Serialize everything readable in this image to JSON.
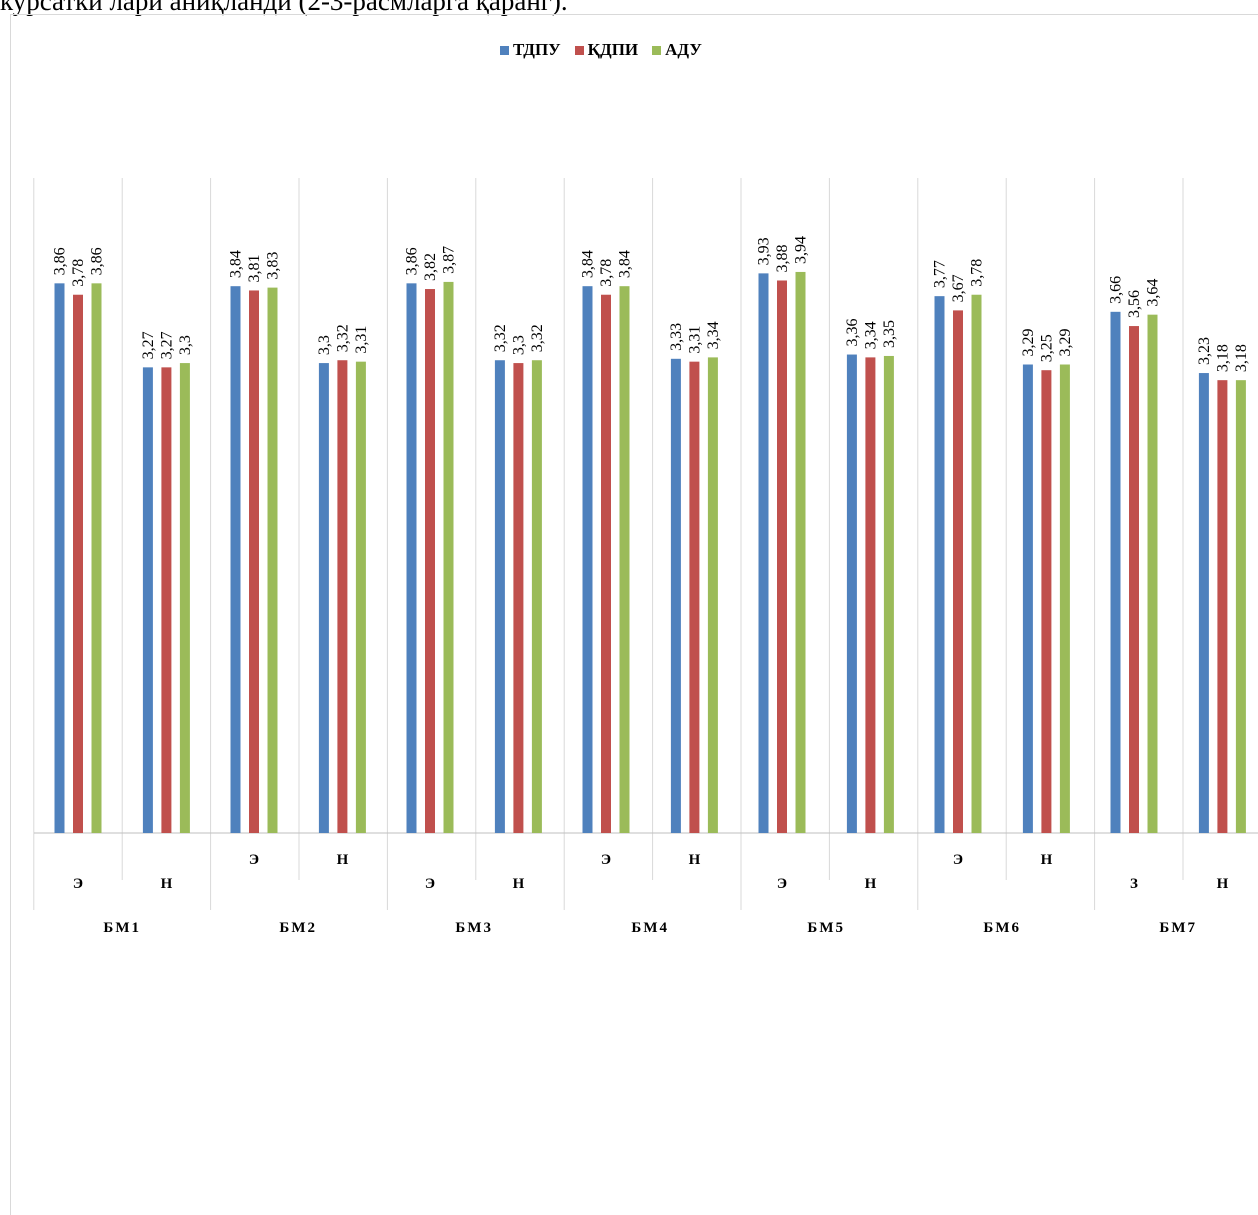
{
  "page": {
    "caption_fragment": "курсатки лари аниқланди (2-3-расмларга қаранг)."
  },
  "chart_data": {
    "type": "bar",
    "title": "",
    "xlabel": "",
    "ylabel": "",
    "ylim": [
      0,
      4.6
    ],
    "grid": false,
    "legend_position": "top-center",
    "groups": [
      {
        "label": "БМ1",
        "subs": [
          "Э",
          "Н"
        ]
      },
      {
        "label": "БМ2",
        "subs": [
          "Э",
          "Н"
        ]
      },
      {
        "label": "БМ3",
        "subs": [
          "Э",
          "Н"
        ]
      },
      {
        "label": "БМ4",
        "subs": [
          "Э",
          "Н"
        ]
      },
      {
        "label": "БМ5",
        "subs": [
          "Э",
          "Н"
        ]
      },
      {
        "label": "БМ6",
        "subs": [
          "Э",
          "Н"
        ]
      },
      {
        "label": "БМ7",
        "subs": [
          "З",
          "Н"
        ]
      }
    ],
    "series": [
      {
        "name": "ТДПУ",
        "color": "#4f81bd",
        "values": [
          3.86,
          3.27,
          3.84,
          3.3,
          3.86,
          3.32,
          3.84,
          3.33,
          3.93,
          3.36,
          3.77,
          3.29,
          3.66,
          3.23
        ],
        "labels": [
          "3,86",
          "3,27",
          "3,84",
          "3,3",
          "3,86",
          "3,32",
          "3,84",
          "3,33",
          "3,93",
          "3,36",
          "3,77",
          "3,29",
          "3,66",
          "3,23"
        ]
      },
      {
        "name": "ҚДПИ",
        "color": "#c0504d",
        "values": [
          3.78,
          3.27,
          3.81,
          3.32,
          3.82,
          3.3,
          3.78,
          3.31,
          3.88,
          3.34,
          3.67,
          3.25,
          3.56,
          3.18
        ],
        "labels": [
          "3,78",
          "3,27",
          "3,81",
          "3,32",
          "3,82",
          "3,3",
          "3,78",
          "3,31",
          "3,88",
          "3,34",
          "3,67",
          "3,25",
          "3,56",
          "3,18"
        ]
      },
      {
        "name": "АДУ",
        "color": "#9bbb59",
        "values": [
          3.86,
          3.3,
          3.83,
          3.31,
          3.87,
          3.32,
          3.84,
          3.34,
          3.94,
          3.35,
          3.78,
          3.29,
          3.64,
          3.18
        ],
        "labels": [
          "3,86",
          "3,3",
          "3,83",
          "3,31",
          "3,87",
          "3,32",
          "3,84",
          "3,34",
          "3,94",
          "3,35",
          "3,78",
          "3,29",
          "3,64",
          "3,18"
        ]
      }
    ]
  }
}
